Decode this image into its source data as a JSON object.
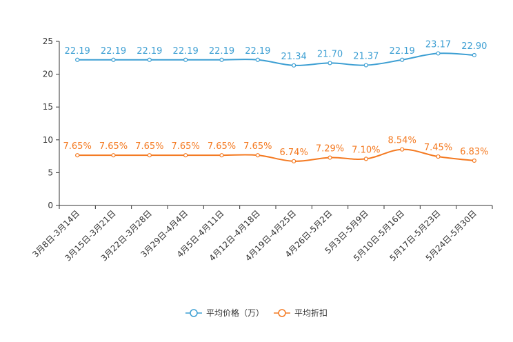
{
  "chart_data": {
    "type": "line",
    "title": "",
    "xlabel": "",
    "ylabel": "",
    "ylim": [
      0,
      25
    ],
    "yticks": [
      0,
      5,
      10,
      15,
      20,
      25
    ],
    "grid": false,
    "legend_position": "bottom-center",
    "categories": [
      "3月8日-3月14日",
      "3月15日-3月21日",
      "3月22日-3月28日",
      "3月29日-4月4日",
      "4月5日-4月11日",
      "4月12日-4月18日",
      "4月19日-4月25日",
      "4月26日-5月2日",
      "5月3日-5月9日",
      "5月10日-5月16日",
      "5月17日-5月23日",
      "5月24日-5月30日"
    ],
    "series": [
      {
        "name": "平均价格（万）",
        "color": "#3d9fd3",
        "values": [
          22.19,
          22.19,
          22.19,
          22.19,
          22.19,
          22.19,
          21.34,
          21.7,
          21.37,
          22.19,
          23.17,
          22.9
        ],
        "labels": [
          "22.19",
          "22.19",
          "22.19",
          "22.19",
          "22.19",
          "22.19",
          "21.34",
          "21.70",
          "21.37",
          "22.19",
          "23.17",
          "22.90"
        ]
      },
      {
        "name": "平均折扣",
        "color": "#f47920",
        "values": [
          7.65,
          7.65,
          7.65,
          7.65,
          7.65,
          7.65,
          6.74,
          7.29,
          7.1,
          8.54,
          7.45,
          6.83
        ],
        "labels": [
          "7.65%",
          "7.65%",
          "7.65%",
          "7.65%",
          "7.65%",
          "7.65%",
          "6.74%",
          "7.29%",
          "7.10%",
          "8.54%",
          "7.45%",
          "6.83%"
        ]
      }
    ]
  }
}
